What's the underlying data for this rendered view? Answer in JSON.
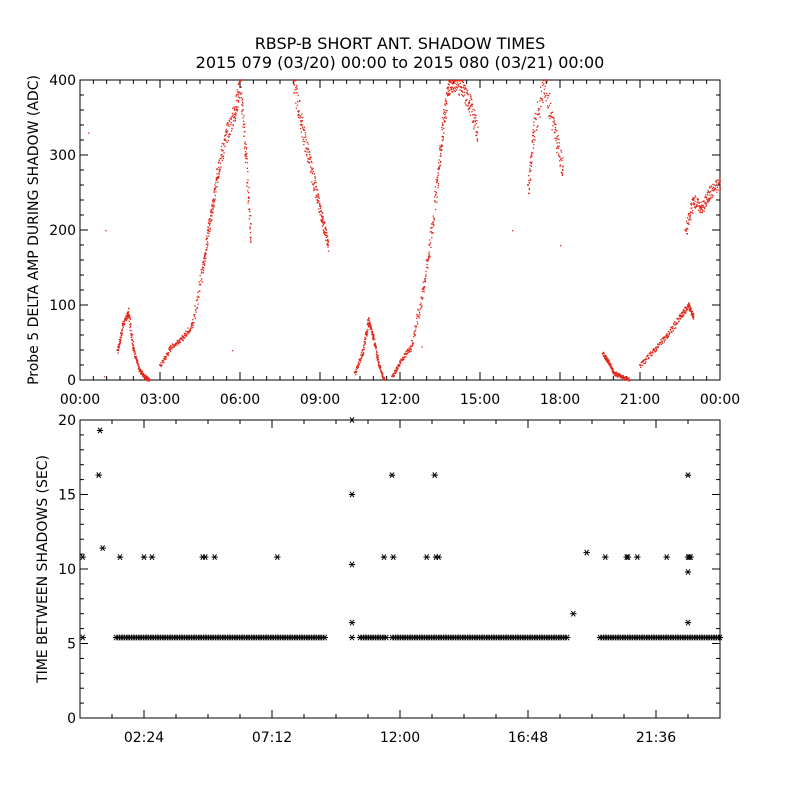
{
  "title_line1": "RBSP-B SHORT ANT. SHADOW TIMES",
  "title_line2": "2015 079 (03/20) 00:00 to 2015 080 (03/21) 00:00",
  "colors": {
    "top_series": "#e2261a",
    "bottom_series": "#000000",
    "axis": "#000000"
  },
  "chart_data": [
    {
      "type": "scatter",
      "ylabel": "Probe 5 DELTA AMP DURING SHADOW (ADC)",
      "xlabel": "",
      "xlim": [
        0,
        24
      ],
      "ylim": [
        0,
        400
      ],
      "x_tick_labels": [
        "00:00",
        "03:00",
        "06:00",
        "09:00",
        "12:00",
        "15:00",
        "18:00",
        "21:00",
        "00:00"
      ],
      "y_tick_labels": [
        "0",
        "100",
        "200",
        "300",
        "400"
      ],
      "grid": false,
      "marker": "dot",
      "series": [
        {
          "segments": [
            {
              "x": [
                1.4,
                1.6,
                1.8,
                2.0,
                2.2,
                2.4,
                2.6
              ],
              "y": [
                40,
                75,
                90,
                40,
                15,
                5,
                0
              ]
            },
            {
              "x": [
                3.0,
                3.4,
                3.8,
                4.2,
                4.6,
                4.8,
                5.0,
                5.2,
                5.5,
                5.8,
                6.0,
                6.2,
                6.4
              ],
              "y": [
                20,
                45,
                55,
                75,
                150,
                200,
                240,
                290,
                330,
                360,
                400,
                300,
                190
              ]
            },
            {
              "x": [
                8.0,
                8.3,
                8.6,
                8.9,
                9.1,
                9.3
              ],
              "y": [
                400,
                340,
                290,
                240,
                210,
                180
              ]
            },
            {
              "x": [
                10.3,
                10.6,
                10.8,
                11.0,
                11.2,
                11.4
              ],
              "y": [
                10,
                40,
                80,
                55,
                20,
                0
              ]
            },
            {
              "x": [
                11.7,
                12.0,
                12.4,
                12.8,
                13.1,
                13.4,
                13.6,
                13.8,
                14.0,
                14.3,
                14.6,
                14.9
              ],
              "y": [
                5,
                25,
                45,
                110,
                180,
                270,
                340,
                390,
                400,
                390,
                370,
                330
              ]
            },
            {
              "x": [
                16.8,
                17.0,
                17.4,
                17.8,
                18.1
              ],
              "y": [
                260,
                330,
                400,
                330,
                280
              ]
            },
            {
              "x": [
                19.6,
                19.8,
                20.0,
                20.3,
                20.6
              ],
              "y": [
                35,
                25,
                10,
                5,
                0
              ]
            },
            {
              "x": [
                21.0,
                21.5,
                22.0,
                22.5,
                22.8,
                23.0
              ],
              "y": [
                20,
                40,
                60,
                85,
                100,
                85
              ]
            },
            {
              "x": [
                22.7,
                23.0,
                23.3,
                23.6,
                24.0
              ],
              "y": [
                200,
                240,
                230,
                250,
                265
              ]
            }
          ]
        }
      ]
    },
    {
      "type": "scatter",
      "ylabel": "TIME BETWEEN SHADOWS (SEC)",
      "xlabel": "",
      "xlim": [
        0,
        24
      ],
      "ylim": [
        0,
        20
      ],
      "x_ticks": [
        2.4,
        7.2,
        12.0,
        16.8,
        21.6
      ],
      "x_tick_labels": [
        "02:24",
        "07:12",
        "12:00",
        "16:48",
        "21:36"
      ],
      "y_tick_labels": [
        "0",
        "5",
        "10",
        "15",
        "20"
      ],
      "grid": false,
      "marker": "asterisk",
      "series": [
        {
          "bands": [
            {
              "x_from": 1.35,
              "x_to": 9.25,
              "y": 5.4
            },
            {
              "x_from": 10.5,
              "x_to": 11.55,
              "y": 5.4
            },
            {
              "x_from": 11.7,
              "x_to": 18.3,
              "y": 5.4
            },
            {
              "x_from": 19.5,
              "x_to": 24.0,
              "y": 5.4
            }
          ],
          "x": [
            0.1,
            0.1,
            0.7,
            0.75,
            0.85,
            1.5,
            2.4,
            2.7,
            4.6,
            4.7,
            5.05,
            7.4,
            10.2,
            10.2,
            10.2,
            10.2,
            10.2,
            11.4,
            11.7,
            11.75,
            13.0,
            13.3,
            13.35,
            13.45,
            18.5,
            19.0,
            19.7,
            20.5,
            20.55,
            20.9,
            22.0,
            22.8,
            22.8,
            22.8,
            22.8,
            22.85,
            22.9
          ],
          "y": [
            5.4,
            10.8,
            16.3,
            19.3,
            11.4,
            10.8,
            10.8,
            10.8,
            10.8,
            10.8,
            10.8,
            10.8,
            20.0,
            15.0,
            10.3,
            6.4,
            5.4,
            10.8,
            16.3,
            10.8,
            10.8,
            16.3,
            10.8,
            10.8,
            7.0,
            11.1,
            10.8,
            10.8,
            10.8,
            10.8,
            10.8,
            16.3,
            10.8,
            9.8,
            6.4,
            10.8,
            10.8
          ]
        }
      ]
    }
  ]
}
